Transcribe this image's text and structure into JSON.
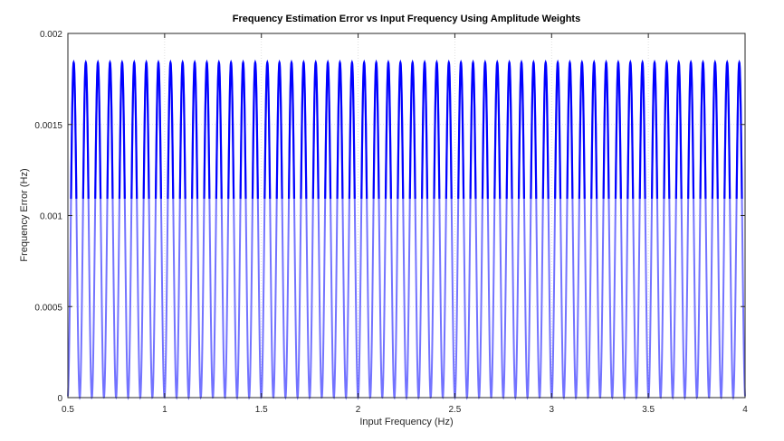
{
  "chart_data": {
    "type": "line",
    "title": "Frequency Estimation Error vs Input Frequency Using Amplitude Weights",
    "xlabel": "Input Frequency (Hz)",
    "ylabel": "Frequency Error (Hz)",
    "xlim": [
      0.5,
      4
    ],
    "ylim": [
      0,
      0.002
    ],
    "x_ticks": [
      "0.5",
      "1",
      "1.5",
      "2",
      "2.5",
      "3",
      "3.5",
      "4"
    ],
    "y_ticks": [
      "0",
      "0.0005",
      "0.001",
      "0.0015",
      "0.002"
    ],
    "grid": true,
    "legend": "none",
    "series": [
      {
        "color": "#0000ff",
        "peak_value": 0.00184,
        "min_value": 0,
        "period_hz": 0.0625,
        "first_peak_x": 0.53,
        "last_peak_x": 3.97,
        "x_start": 0.5,
        "x_end": 4
      }
    ]
  }
}
